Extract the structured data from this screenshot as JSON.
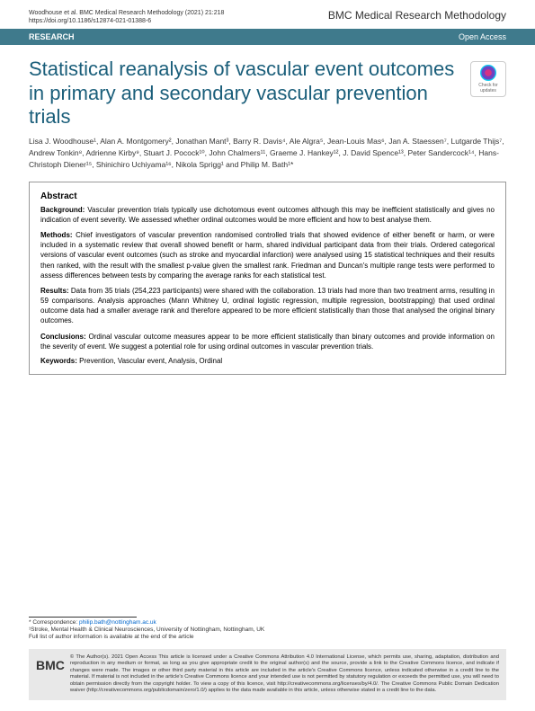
{
  "header": {
    "citation": "Woodhouse et al. BMC Medical Research Methodology        (2021) 21:218",
    "doi": "https://doi.org/10.1186/s12874-021-01388-6",
    "journal": "BMC Medical Research Methodology"
  },
  "bar": {
    "type": "RESEARCH",
    "access": "Open Access"
  },
  "title": "Statistical reanalysis of vascular event outcomes in primary and secondary vascular prevention trials",
  "check_updates": "Check for updates",
  "authors": "Lisa J. Woodhouse¹, Alan A. Montgomery², Jonathan Mant³, Barry R. Davis⁴, Ale Algra⁵, Jean-Louis Mas⁶, Jan A. Staessen⁷, Lutgarde Thijs⁷, Andrew Tonkin⁸, Adrienne Kirby⁹, Stuart J. Pocock¹⁰, John Chalmers¹¹, Graeme J. Hankey¹², J. David Spence¹³, Peter Sandercock¹⁴, Hans-Christoph Diener¹⁵, Shinichiro Uchiyama¹⁶, Nikola Sprigg¹ and Philip M. Bath¹*",
  "abstract": {
    "heading": "Abstract",
    "background_label": "Background:",
    "background": "Vascular prevention trials typically use dichotomous event outcomes although this may be inefficient statistically and gives no indication of event severity. We assessed whether ordinal outcomes would be more efficient and how to best analyse them.",
    "methods_label": "Methods:",
    "methods": "Chief investigators of vascular prevention randomised controlled trials that showed evidence of either benefit or harm, or were included in a systematic review that overall showed benefit or harm, shared individual participant data from their trials. Ordered categorical versions of vascular event outcomes (such as stroke and myocardial infarction) were analysed using 15 statistical techniques and their results then ranked, with the result with the smallest p-value given the smallest rank. Friedman and Duncan's multiple range tests were performed to assess differences between tests by comparing the average ranks for each statistical test.",
    "results_label": "Results:",
    "results": "Data from 35 trials (254,223 participants) were shared with the collaboration. 13 trials had more than two treatment arms, resulting in 59 comparisons. Analysis approaches (Mann Whitney U, ordinal logistic regression, multiple regression, bootstrapping) that used ordinal outcome data had a smaller average rank and therefore appeared to be more efficient statistically than those that analysed the original binary outcomes.",
    "conclusions_label": "Conclusions:",
    "conclusions": "Ordinal vascular outcome measures appear to be more efficient statistically than binary outcomes and provide information on the severity of event. We suggest a potential role for using ordinal outcomes in vascular prevention trials.",
    "keywords_label": "Keywords:",
    "keywords": "Prevention, Vascular event, Analysis, Ordinal"
  },
  "footer": {
    "correspondence_label": "* Correspondence:",
    "email": "philip.bath@nottingham.ac.uk",
    "affiliation": "¹Stroke, Mental Health & Clinical Neurosciences, University of Nottingham, Nottingham, UK",
    "author_info": "Full list of author information is available at the end of the article",
    "bmc": "BMC",
    "license": "© The Author(s). 2021 Open Access This article is licensed under a Creative Commons Attribution 4.0 International License, which permits use, sharing, adaptation, distribution and reproduction in any medium or format, as long as you give appropriate credit to the original author(s) and the source, provide a link to the Creative Commons licence, and indicate if changes were made. The images or other third party material in this article are included in the article's Creative Commons licence, unless indicated otherwise in a credit line to the material. If material is not included in the article's Creative Commons licence and your intended use is not permitted by statutory regulation or exceeds the permitted use, you will need to obtain permission directly from the copyright holder. To view a copy of this licence, visit http://creativecommons.org/licenses/by/4.0/. The Creative Commons Public Domain Dedication waiver (http://creativecommons.org/publicdomain/zero/1.0/) applies to the data made available in this article, unless otherwise stated in a credit line to the data."
  }
}
